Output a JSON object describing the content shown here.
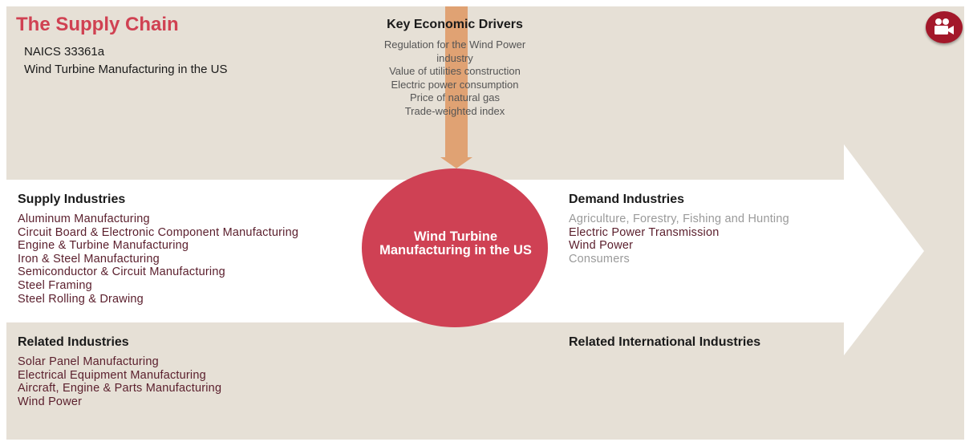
{
  "header": {
    "title": "The Supply Chain",
    "naics_code": "NAICS 33361a",
    "industry_name": "Wind Turbine Manufacturing in the US"
  },
  "key_economic_drivers": {
    "heading": "Key Economic Drivers",
    "items": [
      "Regulation for the Wind Power industry",
      "Value of utilities construction",
      "Electric power consumption",
      "Price of natural gas",
      "Trade-weighted index"
    ]
  },
  "center": {
    "label": "Wind Turbine Manufacturing in the US"
  },
  "supply_industries": {
    "heading": "Supply Industries",
    "items": [
      "Aluminum Manufacturing",
      "Circuit Board & Electronic Component Manufacturing",
      "Engine & Turbine Manufacturing",
      "Iron & Steel Manufacturing",
      "Semiconductor & Circuit Manufacturing",
      "Steel Framing",
      "Steel Rolling & Drawing"
    ]
  },
  "demand_industries": {
    "heading": "Demand Industries",
    "items": [
      "Agriculture, Forestry, Fishing and Hunting",
      "Electric Power Transmission",
      "Wind Power",
      "Consumers"
    ]
  },
  "related_industries": {
    "heading": "Related Industries",
    "items": [
      "Solar Panel Manufacturing",
      "Electrical Equipment Manufacturing",
      "Aircraft, Engine & Parts Manufacturing",
      "Wind Power"
    ]
  },
  "related_international_industries": {
    "heading": "Related International Industries"
  },
  "colors": {
    "panel": "#e6e0d6",
    "title": "#d04152",
    "circle": "#cf4154",
    "driver_arrow": "#e0a273",
    "video_button": "#a3182a"
  },
  "icons": {
    "video": "video-camera-icon"
  }
}
